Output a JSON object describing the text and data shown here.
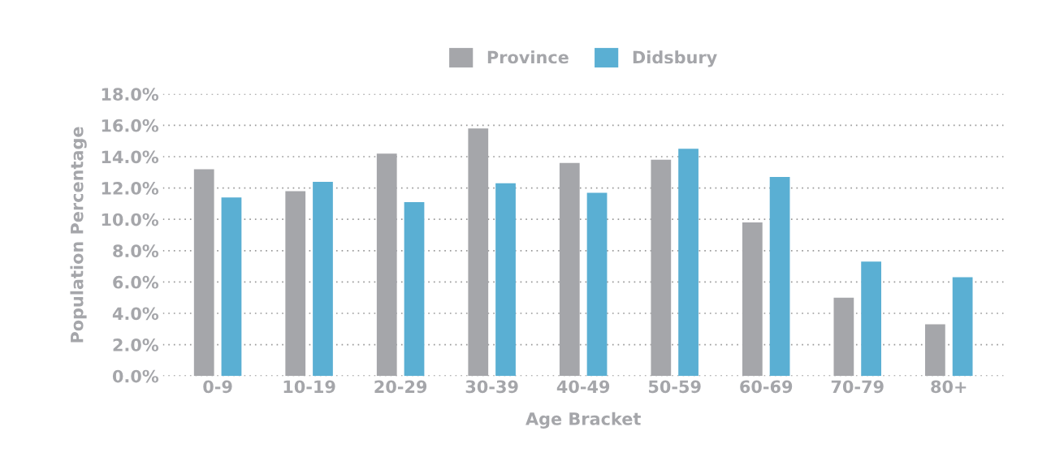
{
  "chart_data": {
    "type": "bar",
    "xlabel": "Age Bracket",
    "ylabel": "Population Percentage",
    "categories": [
      "0-9",
      "10-19",
      "20-29",
      "30-39",
      "40-49",
      "50-59",
      "60-69",
      "70-79",
      "80+"
    ],
    "series": [
      {
        "name": "Province",
        "color": "#a5a6aa",
        "values": [
          13.2,
          11.8,
          14.2,
          15.8,
          13.6,
          13.8,
          9.8,
          5.0,
          3.3
        ]
      },
      {
        "name": "Didsbury",
        "color": "#5aafd3",
        "values": [
          11.4,
          12.4,
          11.1,
          12.3,
          11.7,
          14.5,
          12.7,
          7.3,
          6.3
        ]
      }
    ],
    "ylim": [
      0,
      18
    ],
    "yticks": [
      {
        "value": 0,
        "label": "0.0%"
      },
      {
        "value": 2,
        "label": "2.0%"
      },
      {
        "value": 4,
        "label": "4.0%"
      },
      {
        "value": 6,
        "label": "6.0%"
      },
      {
        "value": 8,
        "label": "8.0%"
      },
      {
        "value": 10,
        "label": "10.0%"
      },
      {
        "value": 12,
        "label": "12.0%"
      },
      {
        "value": 14,
        "label": "14.0%"
      },
      {
        "value": 16,
        "label": "16.0%"
      },
      {
        "value": 18,
        "label": "18.0%"
      }
    ],
    "grid": "y",
    "legend": "top"
  }
}
